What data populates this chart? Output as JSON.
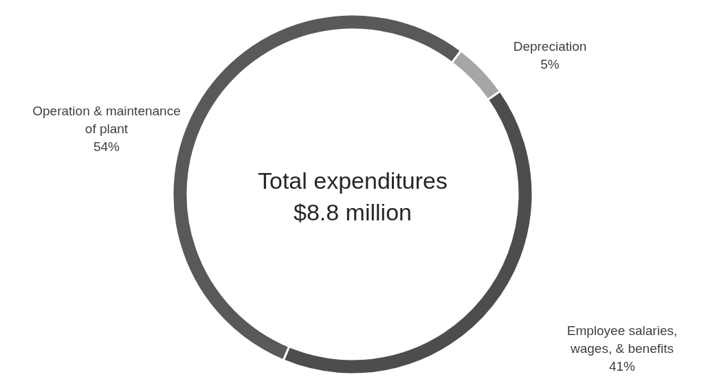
{
  "chart_data": {
    "type": "donut",
    "title": "Total expenditures",
    "subtitle": "$8.8 million",
    "categories": [
      "Operation & maintenance of plant",
      "Depreciation",
      "Employee salaries, wages, & benefits"
    ],
    "values": [
      54,
      5,
      41
    ],
    "colors": [
      "#595959",
      "#a6a6a6",
      "#4d4d4d"
    ],
    "value_labels": [
      "54%",
      "5%",
      "41%"
    ],
    "legend": false
  }
}
